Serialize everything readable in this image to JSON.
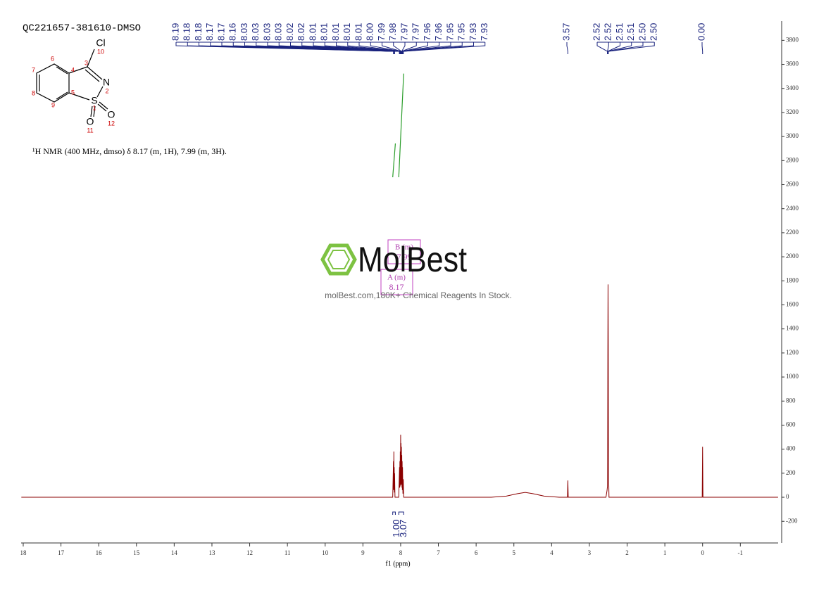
{
  "chart_data": {
    "type": "line",
    "title": "QC221657-381610-DMSO",
    "annotation": "¹H NMR (400 MHz, dmso) δ 8.17 (m, 1H), 7.99 (m, 3H).",
    "x_label": "f1 (ppm)",
    "color": "#8b0000",
    "xlim": [
      18.05,
      -2.0
    ],
    "xticks": [
      18,
      17,
      16,
      15,
      14,
      13,
      12,
      11,
      10,
      9,
      8,
      7,
      6,
      5,
      4,
      3,
      2,
      1,
      0,
      -1
    ],
    "ylim": [
      -380,
      3960
    ],
    "yticks": [
      -200,
      0,
      200,
      400,
      600,
      800,
      1000,
      1200,
      1400,
      1600,
      1800,
      2000,
      2200,
      2400,
      2600,
      2800,
      3000,
      3200,
      3400,
      3600,
      3800
    ],
    "x": [
      18.05,
      8.21,
      8.19,
      8.185,
      8.18,
      8.175,
      8.17,
      8.165,
      8.16,
      8.15,
      8.05,
      8.03,
      8.025,
      8.02,
      8.015,
      8.01,
      8.005,
      8.0,
      7.995,
      7.99,
      7.985,
      7.98,
      7.975,
      7.97,
      7.965,
      7.96,
      7.955,
      7.95,
      7.94,
      7.93,
      7.92,
      5.6,
      5.2,
      4.9,
      4.7,
      4.5,
      4.2,
      3.8,
      3.58,
      3.57,
      3.56,
      2.56,
      2.53,
      2.52,
      2.515,
      2.51,
      2.505,
      2.5,
      2.495,
      2.48,
      0.01,
      0.0,
      -0.01,
      -2.0
    ],
    "values": [
      0,
      0,
      300,
      60,
      380,
      60,
      250,
      40,
      200,
      0,
      0,
      250,
      80,
      300,
      90,
      380,
      100,
      520,
      120,
      450,
      110,
      420,
      100,
      350,
      80,
      300,
      60,
      250,
      30,
      150,
      0,
      0,
      10,
      30,
      40,
      30,
      10,
      0,
      0,
      140,
      0,
      0,
      60,
      90,
      300,
      1200,
      1770,
      1300,
      300,
      0,
      0,
      420,
      0,
      0
    ],
    "peak_labels": [
      [
        {
          "value": 8.19,
          "label": "8.19"
        },
        {
          "value": 8.18,
          "label": "8.18"
        },
        {
          "value": 8.18,
          "label": "8.18"
        },
        {
          "value": 8.17,
          "label": "8.17"
        },
        {
          "value": 8.17,
          "label": "8.17"
        },
        {
          "value": 8.16,
          "label": "8.16"
        },
        {
          "value": 8.03,
          "label": "8.03"
        },
        {
          "value": 8.03,
          "label": "8.03"
        },
        {
          "value": 8.03,
          "label": "8.03"
        },
        {
          "value": 8.03,
          "label": "8.03"
        },
        {
          "value": 8.02,
          "label": "8.02"
        },
        {
          "value": 8.02,
          "label": "8.02"
        },
        {
          "value": 8.01,
          "label": "8.01"
        },
        {
          "value": 8.01,
          "label": "8.01"
        },
        {
          "value": 8.01,
          "label": "8.01"
        },
        {
          "value": 8.01,
          "label": "8.01"
        },
        {
          "value": 8.01,
          "label": "8.01"
        },
        {
          "value": 8.0,
          "label": "8.00"
        },
        {
          "value": 7.99,
          "label": "7.99"
        },
        {
          "value": 7.98,
          "label": "7.98"
        },
        {
          "value": 7.97,
          "label": "7.97"
        },
        {
          "value": 7.97,
          "label": "7.97"
        },
        {
          "value": 7.96,
          "label": "7.96"
        },
        {
          "value": 7.96,
          "label": "7.96"
        },
        {
          "value": 7.95,
          "label": "7.95"
        },
        {
          "value": 7.95,
          "label": "7.95"
        },
        {
          "value": 7.93,
          "label": "7.93"
        },
        {
          "value": 7.93,
          "label": "7.93"
        }
      ],
      [
        {
          "value": 3.57,
          "label": "3.57"
        }
      ],
      [
        {
          "value": 2.52,
          "label": "2.52"
        },
        {
          "value": 2.52,
          "label": "2.52"
        },
        {
          "value": 2.51,
          "label": "2.51"
        },
        {
          "value": 2.51,
          "label": "2.51"
        },
        {
          "value": 2.5,
          "label": "2.50"
        },
        {
          "value": 2.5,
          "label": "2.50"
        }
      ],
      [
        {
          "value": 0.0,
          "label": "0.00"
        }
      ]
    ],
    "integrals": [
      {
        "value": 1.0,
        "label": "1.00",
        "range": [
          8.21,
          8.14
        ]
      },
      {
        "value": 3.07,
        "label": "3.07",
        "range": [
          8.05,
          7.92
        ]
      }
    ],
    "multiplets": [
      {
        "name": "B (m)",
        "shift": "7.99"
      },
      {
        "name": "A (m)",
        "shift": "8.17"
      }
    ]
  },
  "structure": {
    "atoms": [
      {
        "symbol": "Cl",
        "locant": 10
      },
      {
        "symbol": "N",
        "locant": 2
      },
      {
        "symbol": "S",
        "locant": 1
      },
      {
        "symbol": "O",
        "locant": 11
      },
      {
        "symbol": "O",
        "locant": 12
      }
    ],
    "carbons": [
      3,
      4,
      5,
      6,
      7,
      8,
      9
    ]
  },
  "watermark": {
    "brand": "MolBest",
    "tagline": "molBest.com,180K+ Chemical Reagents In Stock."
  }
}
